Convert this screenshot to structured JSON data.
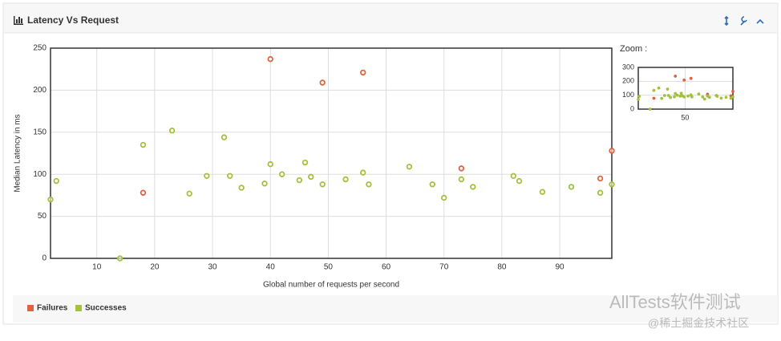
{
  "chart_data": {
    "type": "scatter",
    "title": "Latency Vs Request",
    "x_label": "Global number of requests per second",
    "y_label": "Median Latency in ms",
    "xlim": [
      2,
      99
    ],
    "ylim": [
      0,
      250
    ],
    "xticks": [
      10,
      20,
      30,
      40,
      50,
      60,
      70,
      80,
      90
    ],
    "yticks": [
      0,
      50,
      100,
      150,
      200,
      250
    ],
    "grid": true,
    "legend": "bottom-left",
    "series": [
      {
        "name": "Failures",
        "color": "#e0633f",
        "x": [
          18,
          40,
          49,
          56,
          73,
          97,
          99
        ],
        "values": [
          78,
          237,
          209,
          221,
          107,
          95,
          128
        ]
      },
      {
        "name": "Successes",
        "color": "#a2c13c",
        "x": [
          2,
          3,
          14,
          18,
          23,
          26,
          29,
          32,
          33,
          35,
          39,
          40,
          42,
          45,
          46,
          47,
          49,
          53,
          56,
          57,
          64,
          68,
          70,
          73,
          75,
          82,
          83,
          87,
          92,
          97,
          99
        ],
        "values": [
          70,
          92,
          0,
          135,
          152,
          77,
          98,
          144,
          98,
          84,
          89,
          112,
          100,
          93,
          114,
          97,
          88,
          94,
          102,
          88,
          109,
          88,
          72,
          94,
          85,
          98,
          92,
          79,
          85,
          78,
          88
        ]
      }
    ],
    "zoom": {
      "label": "Zoom :",
      "ylim": [
        0,
        300
      ],
      "yticks": [
        0,
        100,
        200,
        300
      ],
      "xticks": [
        50
      ]
    }
  },
  "watermark": [
    "AllTests软件测试",
    "@稀土掘金技术社区"
  ]
}
